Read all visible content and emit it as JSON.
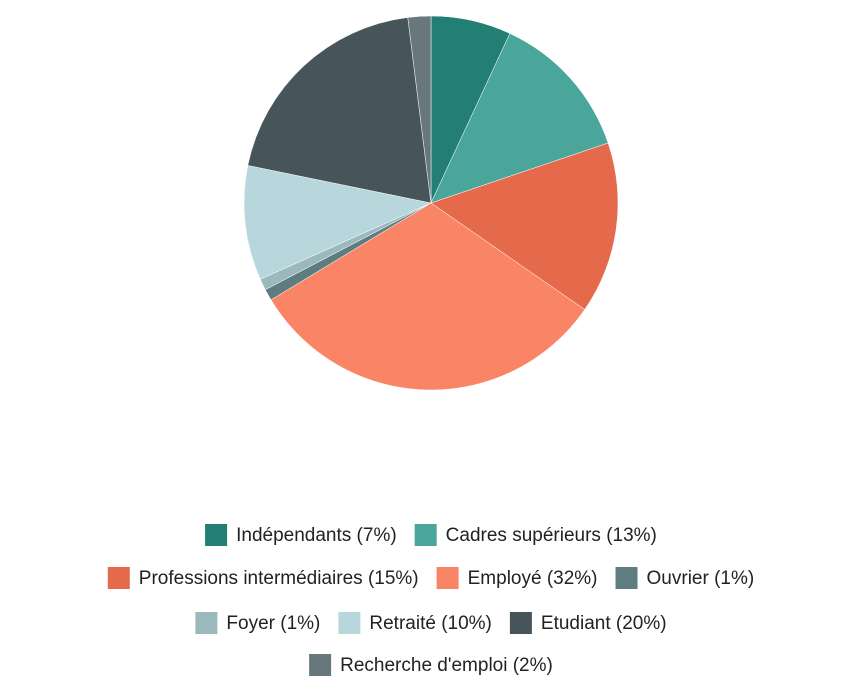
{
  "chart_data": {
    "type": "pie",
    "categories": [
      "Indépendants",
      "Cadres supérieurs",
      "Professions intermédiaires",
      "Employé",
      "Ouvrier",
      "Foyer",
      "Retraité",
      "Etudiant",
      "Recherche d'emploi"
    ],
    "values": [
      7,
      13,
      15,
      32,
      1,
      1,
      10,
      20,
      2
    ],
    "value_labels": [
      "(7%)",
      "(13%)",
      "(15%)",
      "(32%)",
      "(1%)",
      "(1%)",
      "(10%)",
      "(20%)",
      "(2%)"
    ],
    "colors": [
      "#237f74",
      "#4aa59a",
      "#e5694b",
      "#fa8466",
      "#5f7d80",
      "#9bb8bd",
      "#b8d7dc",
      "#47555b",
      "#67777c"
    ],
    "legend": "bottom"
  }
}
